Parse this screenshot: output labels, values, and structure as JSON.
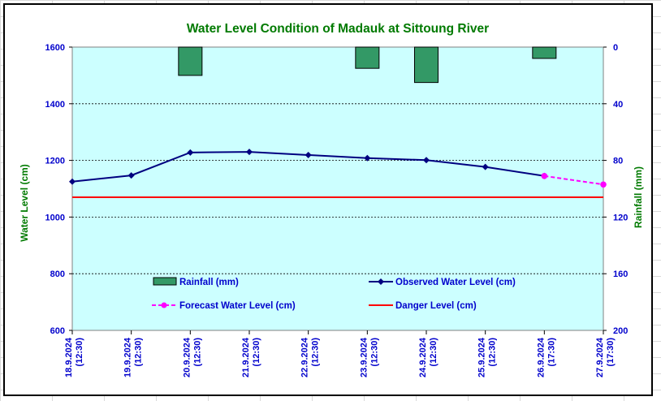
{
  "chart_data": {
    "type": "bar+line",
    "title": "Water Level Condition of Madauk at Sittoung River",
    "categories": [
      "18.9.2024 (12:30)",
      "19.9.2024 (12:30)",
      "20.9.2024 (12:30)",
      "21.9.2024 (12:30)",
      "22.9.2024 (12:30)",
      "23.9.2024 (12:30)",
      "24.9.2024 (12:30)",
      "25.9.2024 (12:30)",
      "26.9.2024 (17:30)",
      "27.9.2024 (17:30)"
    ],
    "ylabel": "Water Level (cm)",
    "ylabel2": "Rainfall (mm)",
    "ylim": [
      600,
      1600
    ],
    "ylim2": [
      0,
      200
    ],
    "y2_inverted": true,
    "yticks": [
      "1600",
      "1400",
      "1200",
      "1000",
      "800",
      "600"
    ],
    "y2ticks": [
      "0",
      "40",
      "80",
      "120",
      "160",
      "200"
    ],
    "grid": "horizontal dashed",
    "series": [
      {
        "name": "Rainfall (mm)",
        "kind": "bar",
        "axis": "right",
        "color": "#339966",
        "values": [
          null,
          null,
          20,
          null,
          null,
          15,
          25,
          null,
          8,
          null
        ]
      },
      {
        "name": "Observed Water Level (cm)",
        "kind": "line",
        "axis": "left",
        "color": "#000080",
        "values": [
          1125,
          1147,
          1228,
          1230,
          1219,
          1208,
          1201,
          1177,
          1145,
          null
        ]
      },
      {
        "name": "Forecast Water Level (cm)",
        "kind": "dashed-line",
        "axis": "left",
        "color": "#ff00ff",
        "values": [
          null,
          null,
          null,
          null,
          null,
          null,
          null,
          null,
          1145,
          1115
        ]
      },
      {
        "name": "Danger Level (cm)",
        "kind": "hline",
        "axis": "left",
        "color": "#ff0000",
        "value": 1070
      }
    ],
    "legend": {
      "rain": "Rainfall (mm)",
      "observed": "Observed Water Level (cm)",
      "forecast": "Forecast Water Level (cm)",
      "danger": "Danger Level (cm)"
    },
    "plot_background": "#ccffff"
  }
}
